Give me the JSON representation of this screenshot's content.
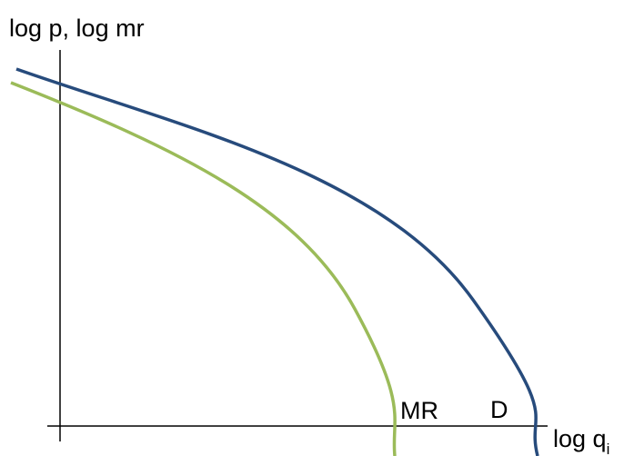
{
  "diagram": {
    "y_axis_label": "log p, log mr",
    "x_axis_label": {
      "text": "log q",
      "subscript": "i"
    },
    "curves": [
      {
        "label": "MR"
      },
      {
        "label": "D"
      }
    ]
  }
}
